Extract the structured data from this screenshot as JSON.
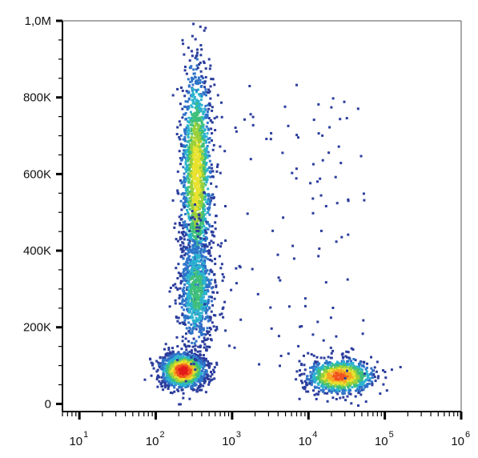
{
  "chart_data": {
    "type": "scatter",
    "title": "",
    "xlabel": "",
    "ylabel": "",
    "x_scale": "log",
    "y_scale": "linear",
    "xlim": [
      6,
      1000000
    ],
    "ylim": [
      -20000,
      1000000
    ],
    "grid": false,
    "legend": "none",
    "x_ticks": [
      {
        "value": 10,
        "base": "10",
        "exp": "1"
      },
      {
        "value": 100,
        "base": "10",
        "exp": "2"
      },
      {
        "value": 1000,
        "base": "10",
        "exp": "3"
      },
      {
        "value": 10000,
        "base": "10",
        "exp": "4"
      },
      {
        "value": 100000,
        "base": "10",
        "exp": "5"
      },
      {
        "value": 1000000,
        "base": "10",
        "exp": "6"
      }
    ],
    "y_ticks": [
      {
        "value": 0,
        "label": "0"
      },
      {
        "value": 200000,
        "label": "200K"
      },
      {
        "value": 400000,
        "label": "400K"
      },
      {
        "value": 600000,
        "label": "600K"
      },
      {
        "value": 800000,
        "label": "800K"
      },
      {
        "value": 1000000,
        "label": "1,0M"
      }
    ],
    "density_colors": [
      "#2b3d9c",
      "#2f73c9",
      "#2cb3cf",
      "#3fc07a",
      "#9ad03a",
      "#e8e22e",
      "#f5a623",
      "#f0521f",
      "#e3191b"
    ],
    "populations": [
      {
        "x_center": 220,
        "y_center": 90000,
        "x_spread_decades": 0.14,
        "y_spread": 22000,
        "peak_density": 1.0
      },
      {
        "x_center": 330,
        "y_center": 600000,
        "x_spread_decades": 0.1,
        "y_spread": 150000,
        "peak_density": 0.65
      },
      {
        "x_center": 330,
        "y_center": 300000,
        "x_spread_decades": 0.12,
        "y_spread": 80000,
        "peak_density": 0.4
      },
      {
        "x_center": 25000,
        "y_center": 75000,
        "x_spread_decades": 0.22,
        "y_spread": 22000,
        "peak_density": 0.85
      }
    ]
  }
}
